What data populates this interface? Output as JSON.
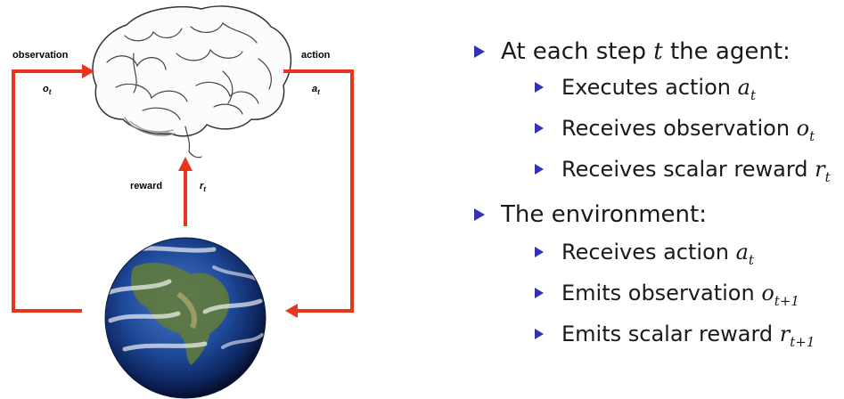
{
  "diagram": {
    "labels": {
      "observation": "observation",
      "action": "action",
      "reward": "reward"
    },
    "variables": {
      "observation": {
        "base": "o",
        "sub": "t"
      },
      "action": {
        "base": "a",
        "sub": "t"
      },
      "reward": {
        "base": "r",
        "sub": "t"
      }
    },
    "arrow_color": "#e8361b",
    "icons": [
      "brain-icon",
      "earth-icon"
    ]
  },
  "bullets": {
    "agent": {
      "prefix": "At each step",
      "var": "t",
      "suffix": "the agent:",
      "items": [
        {
          "text": "Executes action",
          "var": "a",
          "sub": "t"
        },
        {
          "text": "Receives observation",
          "var": "o",
          "sub": "t"
        },
        {
          "text": "Receives scalar reward",
          "var": "r",
          "sub": "t"
        }
      ]
    },
    "environment": {
      "text": "The environment:",
      "items": [
        {
          "text": "Receives action",
          "var": "a",
          "sub": "t"
        },
        {
          "text": "Emits observation",
          "var": "o",
          "sub": "t+1"
        },
        {
          "text": "Emits scalar reward",
          "var": "r",
          "sub": "t+1"
        }
      ]
    },
    "bullet_color": "#3333b2"
  }
}
